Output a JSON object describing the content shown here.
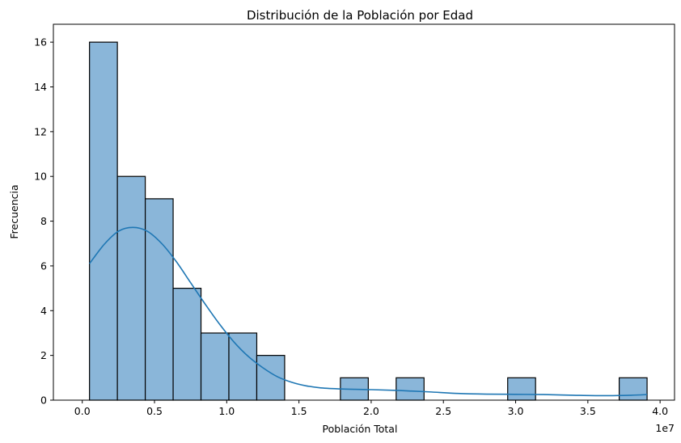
{
  "chart_data": {
    "type": "bar",
    "title": "Distribución de la Población por Edad",
    "xlabel": "Población Total",
    "ylabel": "Frecuencia",
    "x_offset_label": "1e7",
    "x_unit_scale": 10000000,
    "xlim": [
      -2000000,
      41000000
    ],
    "ylim": [
      0,
      16.8
    ],
    "x_ticks": [
      0,
      5000000,
      10000000,
      15000000,
      20000000,
      25000000,
      30000000,
      35000000,
      40000000
    ],
    "x_tick_labels": [
      "0.0",
      "0.5",
      "1.0",
      "1.5",
      "2.0",
      "2.5",
      "3.0",
      "3.5",
      "4.0"
    ],
    "y_ticks": [
      0,
      2,
      4,
      6,
      8,
      10,
      12,
      14,
      16
    ],
    "y_tick_labels": [
      "0",
      "2",
      "4",
      "6",
      "8",
      "10",
      "12",
      "14",
      "16"
    ],
    "bins": [
      {
        "x0": 500000,
        "x1": 2430000,
        "count": 16
      },
      {
        "x0": 2430000,
        "x1": 4360000,
        "count": 10
      },
      {
        "x0": 4360000,
        "x1": 6290000,
        "count": 9
      },
      {
        "x0": 6290000,
        "x1": 8220000,
        "count": 5
      },
      {
        "x0": 8220000,
        "x1": 10150000,
        "count": 3
      },
      {
        "x0": 10150000,
        "x1": 12080000,
        "count": 3
      },
      {
        "x0": 12080000,
        "x1": 14010000,
        "count": 2
      },
      {
        "x0": 17870000,
        "x1": 19800000,
        "count": 1
      },
      {
        "x0": 21730000,
        "x1": 23660000,
        "count": 1
      },
      {
        "x0": 29450000,
        "x1": 31380000,
        "count": 1
      },
      {
        "x0": 37170000,
        "x1": 39100000,
        "count": 1
      }
    ],
    "kde": {
      "x": [
        500000,
        1500000,
        2500000,
        3500000,
        4500000,
        5500000,
        6500000,
        7500000,
        8500000,
        9500000,
        10500000,
        11500000,
        12500000,
        13500000,
        14500000,
        15500000,
        16500000,
        18000000,
        20000000,
        22000000,
        24000000,
        26000000,
        28000000,
        30000000,
        32000000,
        34000000,
        36000000,
        38000000,
        39100000
      ],
      "y": [
        6.1,
        6.95,
        7.55,
        7.72,
        7.55,
        7.0,
        6.2,
        5.25,
        4.3,
        3.4,
        2.6,
        1.95,
        1.45,
        1.05,
        0.8,
        0.64,
        0.55,
        0.5,
        0.47,
        0.43,
        0.37,
        0.3,
        0.27,
        0.26,
        0.25,
        0.22,
        0.2,
        0.22,
        0.25
      ]
    },
    "grid": false,
    "colors": {
      "bar_fill": "#8ab6d9",
      "bar_edge": "#000000",
      "kde_line": "#1f77b4"
    }
  }
}
